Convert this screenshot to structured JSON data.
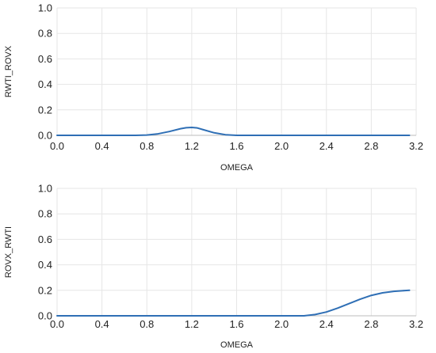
{
  "chart_data": [
    {
      "type": "line",
      "xlabel": "OMEGA",
      "ylabel": "RWTI_ROVX",
      "xlim": [
        0,
        3.2
      ],
      "ylim": [
        0,
        1
      ],
      "xticks": [
        "0.0",
        "0.4",
        "0.8",
        "1.2",
        "1.6",
        "2.0",
        "2.4",
        "2.8",
        "3.2"
      ],
      "yticks": [
        "0.0",
        "0.2",
        "0.4",
        "0.6",
        "0.8",
        "1.0"
      ],
      "grid": true,
      "series": [
        {
          "color": "#2f6fb5",
          "x": [
            0.0,
            0.4,
            0.7,
            0.8,
            0.9,
            1.0,
            1.1,
            1.15,
            1.2,
            1.25,
            1.3,
            1.4,
            1.5,
            1.6,
            2.0,
            2.4,
            2.8,
            3.14
          ],
          "y": [
            0.0,
            0.0,
            0.0,
            0.002,
            0.012,
            0.03,
            0.052,
            0.06,
            0.062,
            0.058,
            0.045,
            0.02,
            0.005,
            0.0,
            0.0,
            0.0,
            0.0,
            0.0
          ]
        }
      ]
    },
    {
      "type": "line",
      "xlabel": "OMEGA",
      "ylabel": "ROVX_RWTI",
      "xlim": [
        0,
        3.2
      ],
      "ylim": [
        0,
        1
      ],
      "xticks": [
        "0.0",
        "0.4",
        "0.8",
        "1.2",
        "1.6",
        "2.0",
        "2.4",
        "2.8",
        "3.2"
      ],
      "yticks": [
        "0.0",
        "0.2",
        "0.4",
        "0.6",
        "0.8",
        "1.0"
      ],
      "grid": true,
      "series": [
        {
          "color": "#2f6fb5",
          "x": [
            0.0,
            0.4,
            0.8,
            1.2,
            1.6,
            2.0,
            2.2,
            2.3,
            2.4,
            2.5,
            2.6,
            2.7,
            2.8,
            2.9,
            3.0,
            3.1,
            3.14
          ],
          "y": [
            0.0,
            0.0,
            0.0,
            0.0,
            0.0,
            0.0,
            0.0,
            0.01,
            0.03,
            0.06,
            0.095,
            0.13,
            0.16,
            0.18,
            0.192,
            0.198,
            0.2
          ]
        }
      ]
    }
  ]
}
